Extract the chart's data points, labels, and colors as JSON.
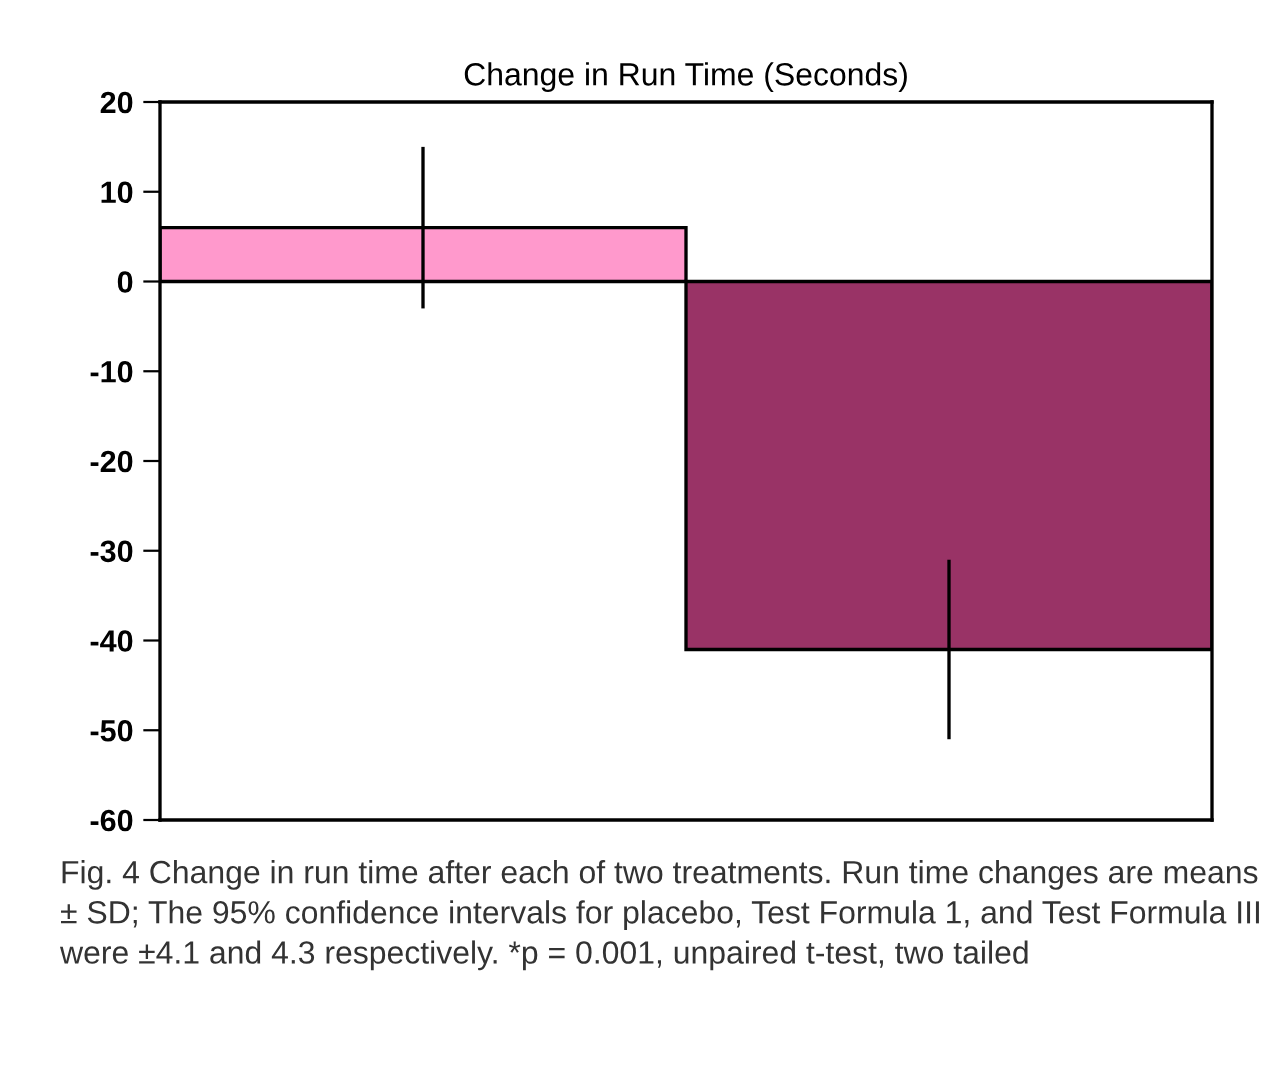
{
  "chart_data": {
    "type": "bar",
    "title": "Change in Run Time (Seconds)",
    "categories": [
      null,
      null
    ],
    "values": [
      6,
      -41
    ],
    "colors": [
      "#ff99cc",
      "#993366"
    ],
    "errors": [
      9,
      10
    ],
    "ylim": [
      -60,
      20
    ],
    "yticks": [
      -60,
      -50,
      -40,
      -30,
      -20,
      -10,
      0,
      10,
      20
    ],
    "grid": false,
    "annotations": [
      "Fig. 4 Change in run time after each of two treatments. Run time changes are means ± SD; The 95% confidence intervals for placebo, Test Formula 1, and Test Formula III were ±4.1 and 4.3 respectively. *p = 0.001, unpaired t-test, two tailed"
    ]
  }
}
